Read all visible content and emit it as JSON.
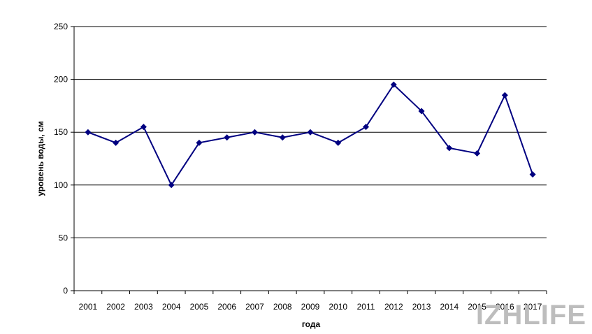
{
  "chart_data": {
    "type": "line",
    "title": "",
    "xlabel": "года",
    "ylabel": "уровень воды, см",
    "categories": [
      "2001",
      "2002",
      "2003",
      "2004",
      "2005",
      "2006",
      "2007",
      "2008",
      "2009",
      "2010",
      "2011",
      "2012",
      "2013",
      "2014",
      "2015",
      "2016",
      "2017"
    ],
    "series": [
      {
        "values": [
          150,
          140,
          155,
          100,
          140,
          145,
          150,
          145,
          150,
          140,
          155,
          195,
          170,
          135,
          130,
          185,
          110
        ]
      }
    ],
    "ylim": [
      0,
      250
    ],
    "yticks": [
      0,
      50,
      100,
      150,
      200,
      250
    ],
    "grid": "horizontal",
    "legend": "none",
    "colors": {
      "series": "#000080",
      "grid": "#000000",
      "axis": "#000000"
    }
  },
  "watermark": {
    "text": "IZHLIFE"
  }
}
